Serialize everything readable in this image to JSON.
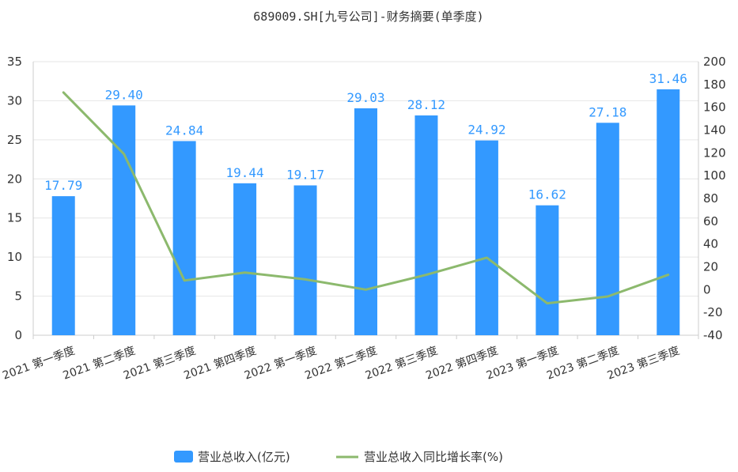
{
  "colors": {
    "bar": "#3399ff",
    "line": "#8cb96d",
    "label": "#3399ff"
  },
  "chart_data": {
    "type": "bar",
    "title": "689009.SH[九号公司]-财务摘要(单季度)",
    "categories": [
      "2021 第一季度",
      "2021 第二季度",
      "2021 第三季度",
      "2021 第四季度",
      "2022 第一季度",
      "2022 第二季度",
      "2022 第三季度",
      "2022 第四季度",
      "2023 第一季度",
      "2023 第二季度",
      "2023 第三季度"
    ],
    "series": [
      {
        "name": "营业总收入(亿元)",
        "type": "bar",
        "axis": "left",
        "values": [
          17.79,
          29.4,
          24.84,
          19.44,
          19.17,
          29.03,
          28.12,
          24.92,
          16.62,
          27.18,
          31.46
        ],
        "labels": [
          "17.79",
          "29.40",
          "24.84",
          "19.44",
          "19.17",
          "29.03",
          "28.12",
          "24.92",
          "16.62",
          "27.18",
          "31.46"
        ]
      },
      {
        "name": "营业总收入同比增长率(%)",
        "type": "line",
        "axis": "right",
        "values": [
          173,
          119,
          8,
          15,
          9,
          0,
          13,
          28,
          -12,
          -6,
          13
        ]
      }
    ],
    "y_left": {
      "min": 0,
      "max": 35,
      "ticks": [
        0,
        5,
        10,
        15,
        20,
        25,
        30,
        35
      ]
    },
    "y_right": {
      "min": -40,
      "max": 200,
      "ticks": [
        -40,
        -20,
        0,
        20,
        40,
        60,
        80,
        100,
        120,
        140,
        160,
        180,
        200
      ]
    },
    "grid": true,
    "legend_position": "bottom-center"
  }
}
